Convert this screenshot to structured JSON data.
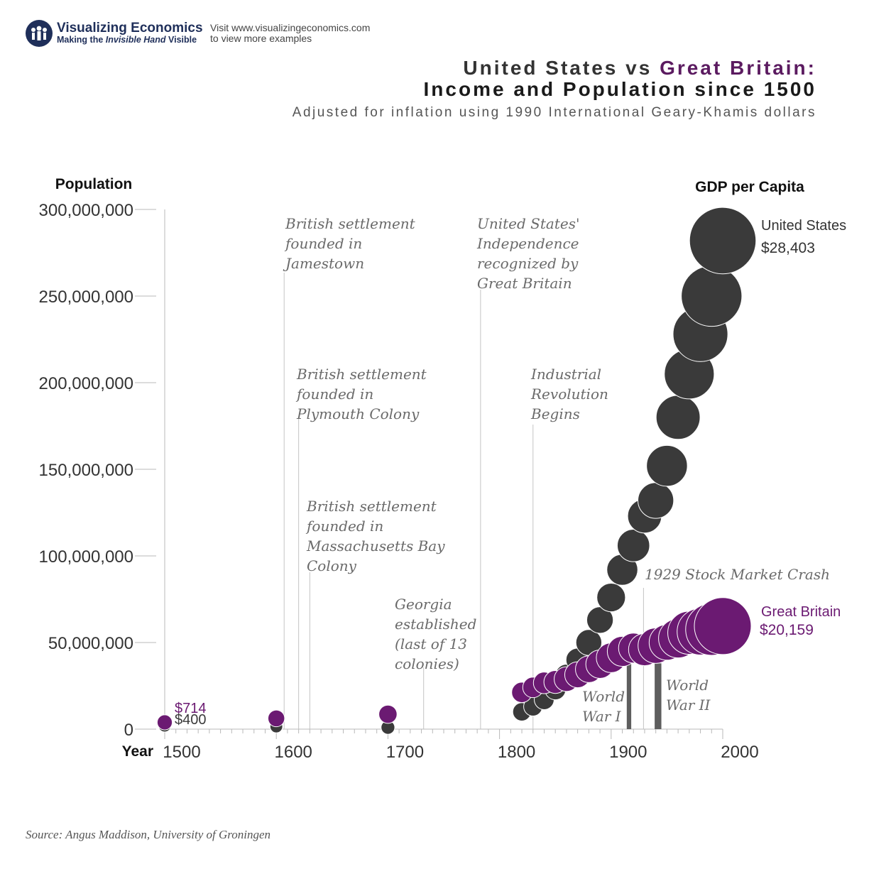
{
  "branding": {
    "logo_title": "Visualizing Economics",
    "logo_tag_prefix": "Making the ",
    "logo_tag_italic": "Invisible Hand",
    "logo_tag_suffix": " Visible",
    "visit_line1": "Visit www.visualizingeconomics.com",
    "visit_line2": "to view more examples"
  },
  "header": {
    "title_part1": "United States vs ",
    "title_part2": "Great Britain:",
    "title_line2": "Income and Population since 1500",
    "subtitle": "Adjusted for inflation using 1990 International Geary-Khamis dollars"
  },
  "source": "Source: Angus Maddison, University of Groningen",
  "colors": {
    "us": "#3a3a3a",
    "gb": "#6b1a72",
    "axis": "#b9b9b9",
    "annotation": "#6a6a6a",
    "war_bar": "#5e5e5e"
  },
  "chart_data": {
    "type": "scatter",
    "title": "United States vs Great Britain: Income and Population since 1500",
    "ylabel": "Population",
    "xlabel": "Year",
    "size_label": "GDP per Capita",
    "xlim": [
      1500,
      2000
    ],
    "ylim": [
      0,
      300000000
    ],
    "x_ticks": [
      "1500",
      "1600",
      "1700",
      "1800",
      "1900",
      "2000"
    ],
    "y_ticks": [
      "0",
      "50,000,000",
      "100,000,000",
      "150,000,000",
      "200,000,000",
      "250,000,000",
      "300,000,000"
    ],
    "series": [
      {
        "name": "United States",
        "end_label": "$28,403",
        "start_label": "$400",
        "points": [
          {
            "x": 1500,
            "y": 2000000,
            "gdp": 400
          },
          {
            "x": 1600,
            "y": 1500000,
            "gdp": 400
          },
          {
            "x": 1700,
            "y": 1000000,
            "gdp": 527
          },
          {
            "x": 1820,
            "y": 10000000,
            "gdp": 1257
          },
          {
            "x": 1830,
            "y": 13000000,
            "gdp": 1349
          },
          {
            "x": 1840,
            "y": 17000000,
            "gdp": 1588
          },
          {
            "x": 1850,
            "y": 23000000,
            "gdp": 1849
          },
          {
            "x": 1860,
            "y": 31000000,
            "gdp": 2178
          },
          {
            "x": 1870,
            "y": 40000000,
            "gdp": 2445
          },
          {
            "x": 1880,
            "y": 50000000,
            "gdp": 3184
          },
          {
            "x": 1890,
            "y": 63000000,
            "gdp": 3392
          },
          {
            "x": 1900,
            "y": 76000000,
            "gdp": 4091
          },
          {
            "x": 1910,
            "y": 92000000,
            "gdp": 4964
          },
          {
            "x": 1920,
            "y": 106000000,
            "gdp": 5552
          },
          {
            "x": 1930,
            "y": 123000000,
            "gdp": 6213
          },
          {
            "x": 1940,
            "y": 132000000,
            "gdp": 7010
          },
          {
            "x": 1950,
            "y": 152000000,
            "gdp": 9561
          },
          {
            "x": 1960,
            "y": 180000000,
            "gdp": 11328
          },
          {
            "x": 1970,
            "y": 205000000,
            "gdp": 15030
          },
          {
            "x": 1980,
            "y": 228000000,
            "gdp": 18577
          },
          {
            "x": 1990,
            "y": 250000000,
            "gdp": 23201
          },
          {
            "x": 2000,
            "y": 282000000,
            "gdp": 28403
          }
        ]
      },
      {
        "name": "Great Britain",
        "end_label": "$20,159",
        "start_label": "$714",
        "points": [
          {
            "x": 1500,
            "y": 3900000,
            "gdp": 714
          },
          {
            "x": 1600,
            "y": 6200000,
            "gdp": 974
          },
          {
            "x": 1700,
            "y": 8600000,
            "gdp": 1250
          },
          {
            "x": 1820,
            "y": 21200000,
            "gdp": 1706
          },
          {
            "x": 1830,
            "y": 24100000,
            "gdp": 1749
          },
          {
            "x": 1840,
            "y": 26700000,
            "gdp": 1990
          },
          {
            "x": 1850,
            "y": 27200000,
            "gdp": 2330
          },
          {
            "x": 1860,
            "y": 28900000,
            "gdp": 2830
          },
          {
            "x": 1870,
            "y": 31400000,
            "gdp": 3190
          },
          {
            "x": 1880,
            "y": 34600000,
            "gdp": 3477
          },
          {
            "x": 1890,
            "y": 37500000,
            "gdp": 4009
          },
          {
            "x": 1900,
            "y": 41200000,
            "gdp": 4492
          },
          {
            "x": 1910,
            "y": 44900000,
            "gdp": 4611
          },
          {
            "x": 1920,
            "y": 46800000,
            "gdp": 4548
          },
          {
            "x": 1930,
            "y": 45900000,
            "gdp": 5441
          },
          {
            "x": 1940,
            "y": 48200000,
            "gdp": 6856
          },
          {
            "x": 1950,
            "y": 50100000,
            "gdp": 6939
          },
          {
            "x": 1960,
            "y": 52400000,
            "gdp": 8645
          },
          {
            "x": 1970,
            "y": 55600000,
            "gdp": 10767
          },
          {
            "x": 1980,
            "y": 56300000,
            "gdp": 12931
          },
          {
            "x": 1990,
            "y": 57600000,
            "gdp": 16430
          },
          {
            "x": 2000,
            "y": 59500000,
            "gdp": 20159
          }
        ]
      }
    ],
    "annotations": [
      {
        "year": 1607,
        "lines": [
          "British settlement",
          "founded in",
          "Jamestown"
        ]
      },
      {
        "year": 1620,
        "lines": [
          "British settlement",
          "founded in",
          "Plymouth Colony"
        ]
      },
      {
        "year": 1630,
        "lines": [
          "British settlement",
          "founded in",
          "Massachusetts Bay",
          "Colony"
        ]
      },
      {
        "year": 1732,
        "lines": [
          "Georgia",
          "established",
          "(last of 13",
          "colonies)"
        ]
      },
      {
        "year": 1783,
        "lines": [
          "United States'",
          "Independence",
          "recognized by",
          "Great Britain"
        ]
      },
      {
        "year": 1830,
        "lines": [
          "Industrial",
          "Revolution",
          "Begins"
        ]
      },
      {
        "year": 1929,
        "lines": [
          "1929 Stock Market Crash"
        ]
      }
    ],
    "wars": [
      {
        "label_lines": [
          "World",
          "War I"
        ],
        "start": 1914,
        "end": 1918
      },
      {
        "label_lines": [
          "World",
          "War II"
        ],
        "start": 1939,
        "end": 1945
      }
    ]
  }
}
